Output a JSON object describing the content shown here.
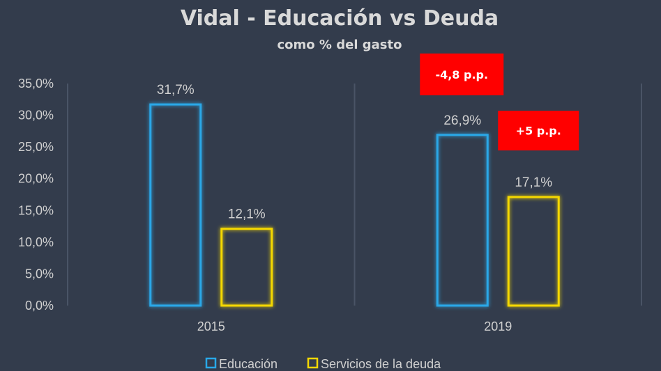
{
  "chart_data": {
    "type": "bar",
    "title": "Vidal -  Educación vs Deuda",
    "subtitle": "como % del gasto",
    "categories": [
      "2015",
      "2019"
    ],
    "series": [
      {
        "name": "Educación",
        "values": [
          31.7,
          26.9
        ],
        "labels": [
          "31,7%",
          "26,9%"
        ],
        "color": "#29a8e8"
      },
      {
        "name": "Servicios de la deuda",
        "values": [
          12.1,
          17.1
        ],
        "labels": [
          "12,1%",
          "17,1%"
        ],
        "color": "#f5d800"
      }
    ],
    "ylim": [
      0,
      35
    ],
    "yticks": [
      0,
      5,
      10,
      15,
      20,
      25,
      30,
      35
    ],
    "ytick_labels": [
      "0,0%",
      "5,0%",
      "10,0%",
      "15,0%",
      "20,0%",
      "25,0%",
      "30,0%",
      "35,0%"
    ],
    "xlabel": "",
    "ylabel": "",
    "legend_position": "bottom",
    "annotations": [
      {
        "text": "-4,8 p.p.",
        "series": "Educación",
        "category": "2019",
        "color": "#ff0000"
      },
      {
        "text": "+5 p.p.",
        "series": "Servicios de la deuda",
        "category": "2019",
        "color": "#ff0000"
      }
    ]
  },
  "colors": {
    "background": "#333c4c",
    "gridline": "#4a5466",
    "text": "#d0d0d0"
  }
}
